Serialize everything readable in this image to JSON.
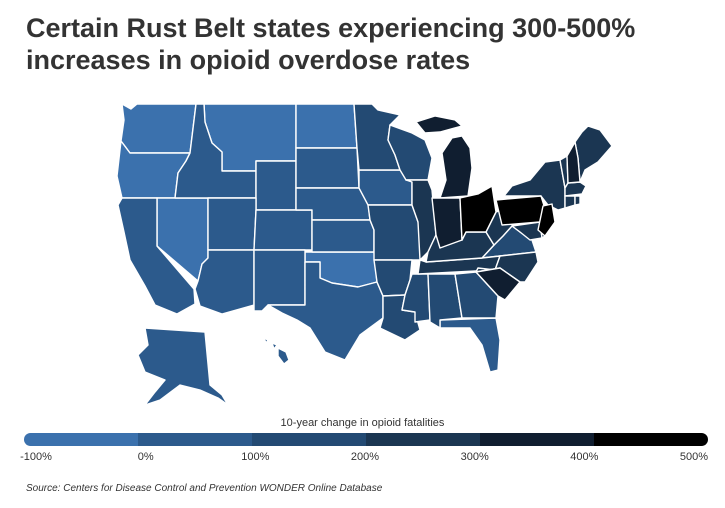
{
  "title": {
    "line1": "Certain Rust Belt states experiencing 300-500%",
    "line2": "increases in opioid overdose rates"
  },
  "legend": {
    "title": "10-year change in opioid fatalities",
    "ticks": [
      "-100%",
      "0%",
      "100%",
      "200%",
      "300%",
      "400%",
      "500%"
    ],
    "bin_colors": [
      "#3b71ad",
      "#2c5a8c",
      "#234a73",
      "#1b3652",
      "#101e30",
      "#000000"
    ]
  },
  "source": "Source: Centers for Disease Control and Prevention WONDER Online Database",
  "colors": {
    "border": "#ffffff",
    "text": "#333333"
  },
  "map_data": {
    "value_unit": "10-year change bin (percent)",
    "states": [
      {
        "id": "WA",
        "bin": "-100% to 0%"
      },
      {
        "id": "OR",
        "bin": "-100% to 0%"
      },
      {
        "id": "MT",
        "bin": "-100% to 0%"
      },
      {
        "id": "ND",
        "bin": "-100% to 0%"
      },
      {
        "id": "NV",
        "bin": "-100% to 0%"
      },
      {
        "id": "OK",
        "bin": "-100% to 0%"
      },
      {
        "id": "CA",
        "bin": "0% to 100%"
      },
      {
        "id": "ID",
        "bin": "0% to 100%"
      },
      {
        "id": "WY",
        "bin": "0% to 100%"
      },
      {
        "id": "SD",
        "bin": "0% to 100%"
      },
      {
        "id": "UT",
        "bin": "0% to 100%"
      },
      {
        "id": "CO",
        "bin": "0% to 100%"
      },
      {
        "id": "NE",
        "bin": "0% to 100%"
      },
      {
        "id": "KS",
        "bin": "0% to 100%"
      },
      {
        "id": "AZ",
        "bin": "0% to 100%"
      },
      {
        "id": "NM",
        "bin": "0% to 100%"
      },
      {
        "id": "TX",
        "bin": "0% to 100%"
      },
      {
        "id": "IA",
        "bin": "0% to 100%"
      },
      {
        "id": "FL",
        "bin": "0% to 100%"
      },
      {
        "id": "AK",
        "bin": "0% to 100%"
      },
      {
        "id": "HI",
        "bin": "0% to 100%"
      },
      {
        "id": "MN",
        "bin": "100% to 200%"
      },
      {
        "id": "MO",
        "bin": "100% to 200%"
      },
      {
        "id": "AR",
        "bin": "100% to 200%"
      },
      {
        "id": "LA",
        "bin": "100% to 200%"
      },
      {
        "id": "MS",
        "bin": "100% to 200%"
      },
      {
        "id": "AL",
        "bin": "100% to 200%"
      },
      {
        "id": "GA",
        "bin": "100% to 200%"
      },
      {
        "id": "WI",
        "bin": "100% to 200%"
      },
      {
        "id": "VA",
        "bin": "100% to 200%"
      },
      {
        "id": "IL",
        "bin": "200% to 300%"
      },
      {
        "id": "TN",
        "bin": "200% to 300%"
      },
      {
        "id": "NC",
        "bin": "200% to 300%"
      },
      {
        "id": "NY",
        "bin": "200% to 300%"
      },
      {
        "id": "VT",
        "bin": "200% to 300%"
      },
      {
        "id": "ME",
        "bin": "200% to 300%"
      },
      {
        "id": "MA",
        "bin": "200% to 300%"
      },
      {
        "id": "CT",
        "bin": "200% to 300%"
      },
      {
        "id": "RI",
        "bin": "200% to 300%"
      },
      {
        "id": "KY",
        "bin": "200% to 300%"
      },
      {
        "id": "WV",
        "bin": "200% to 300%"
      },
      {
        "id": "MD",
        "bin": "200% to 300%"
      },
      {
        "id": "DE",
        "bin": "200% to 300%"
      },
      {
        "id": "MI",
        "bin": "300% to 400%"
      },
      {
        "id": "IN",
        "bin": "300% to 400%"
      },
      {
        "id": "SC",
        "bin": "300% to 400%"
      },
      {
        "id": "NH",
        "bin": "300% to 400%"
      },
      {
        "id": "OH",
        "bin": "400% to 500%"
      },
      {
        "id": "PA",
        "bin": "400% to 500%"
      },
      {
        "id": "NJ",
        "bin": "400% to 500%"
      }
    ]
  }
}
